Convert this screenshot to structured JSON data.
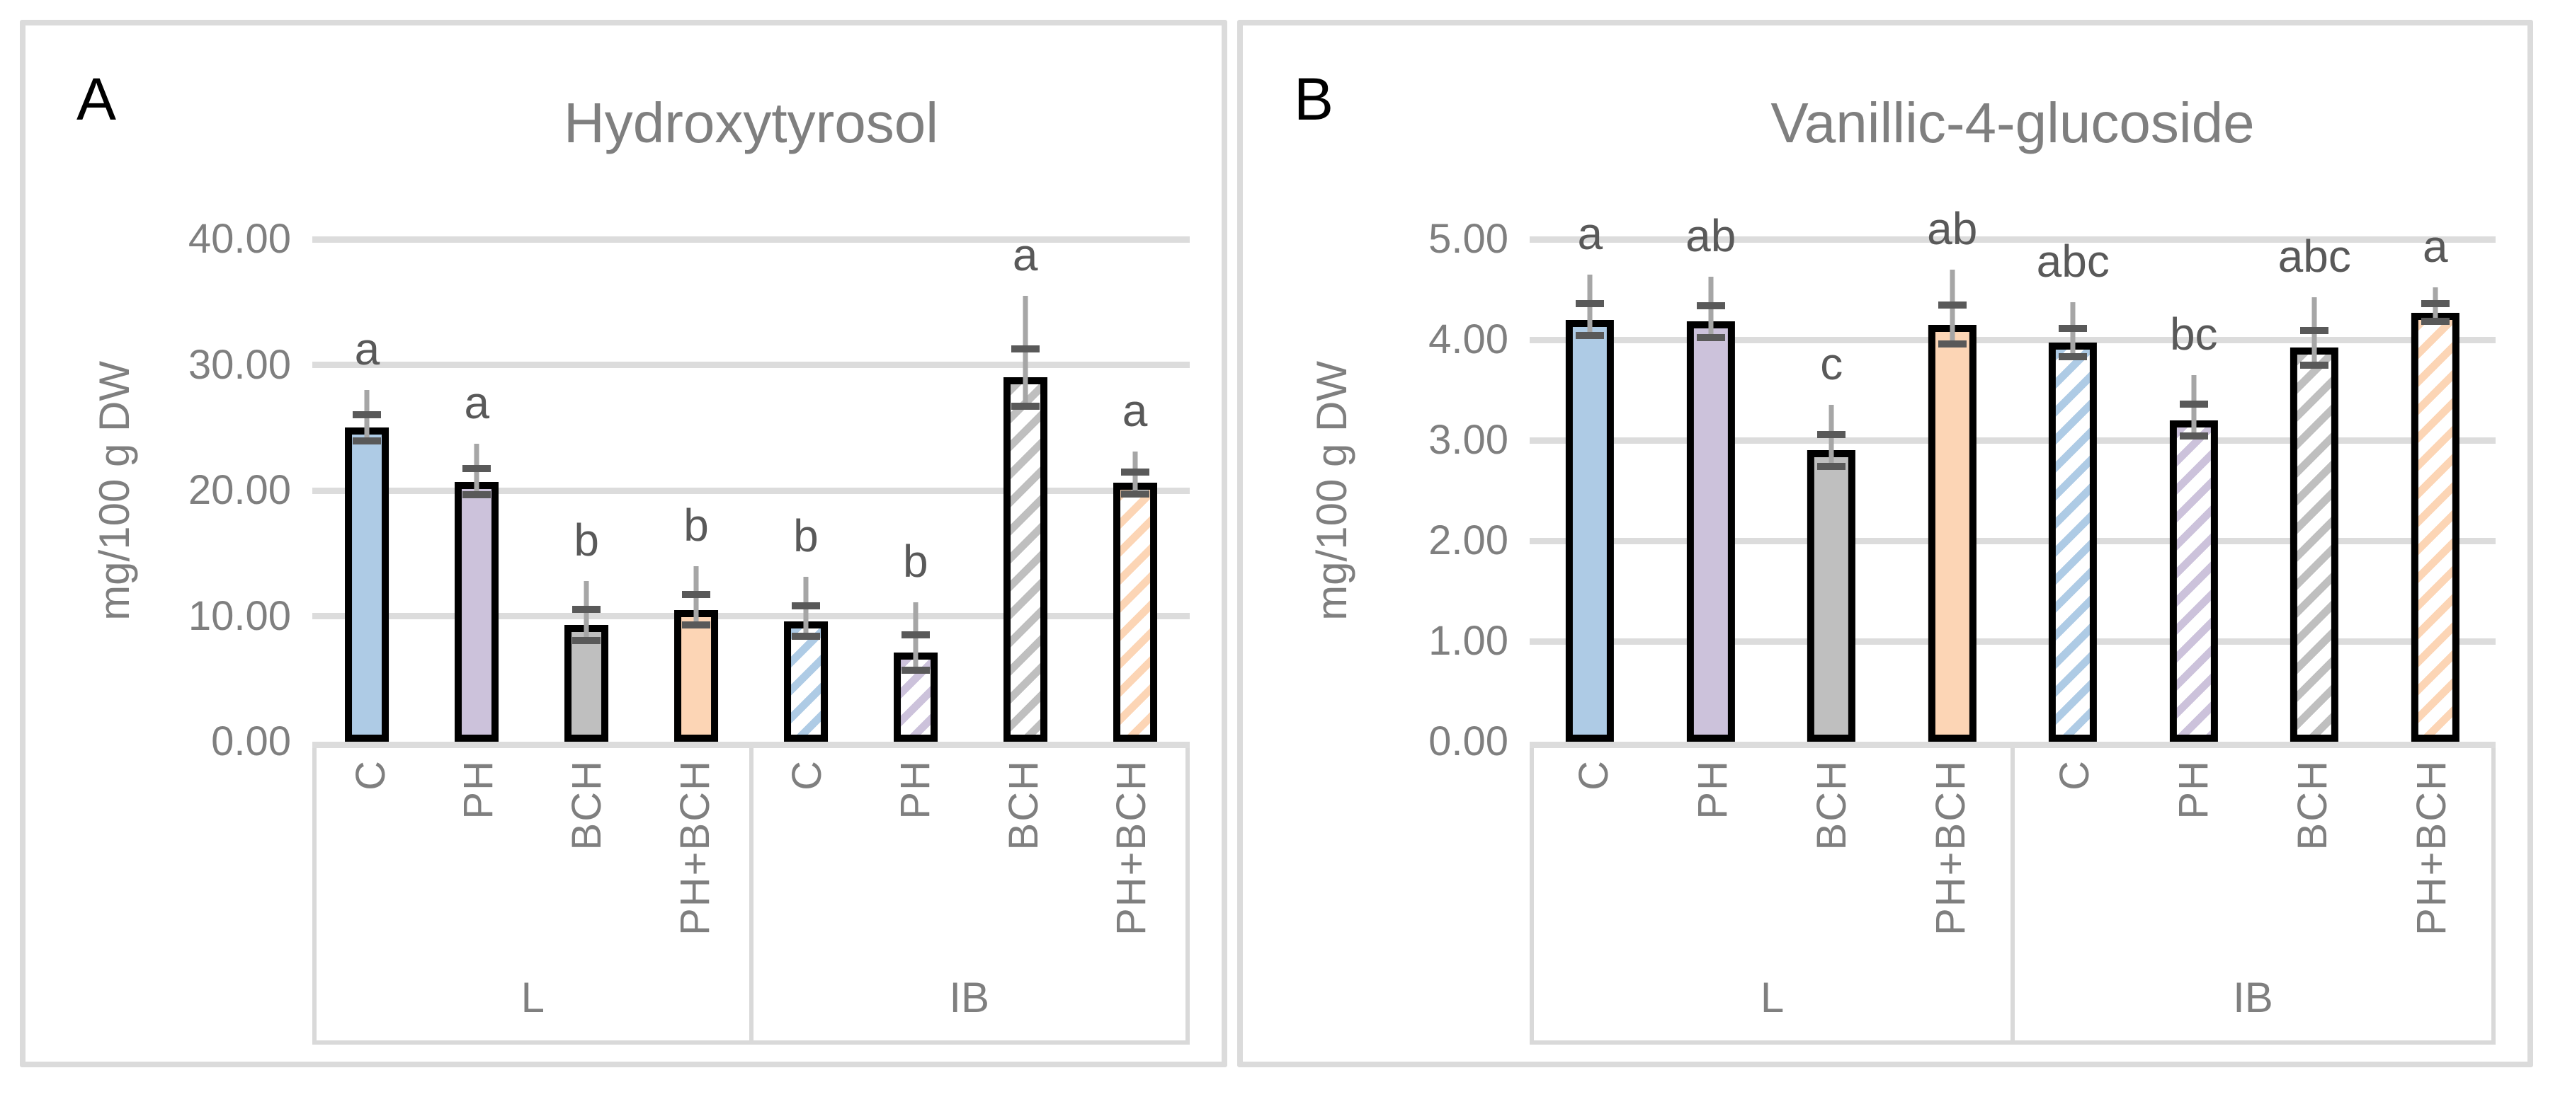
{
  "colors": {
    "panel_bg": "#FFFFFF",
    "panel_border": "#DBDBDB",
    "gridline": "#DCDCDC",
    "axis_box_line": "#D9D9D9",
    "bar_border": "#000000",
    "tick_text": "#7F7F7F",
    "title_text": "#7F7F7F",
    "letter_text": "#595959",
    "error_line": "#A6A6A6",
    "error_cap": "#595959"
  },
  "chart_data": [
    {
      "type": "bar",
      "panel_label": "A",
      "title": "Hydroxytyrosol",
      "xlabel": "",
      "ylabel": "mg/100 g DW",
      "ylim": [
        0,
        40
      ],
      "yticks": [
        "40.00",
        "30.00",
        "20.00",
        "10.00",
        "0.00"
      ],
      "grid": true,
      "legend": "none",
      "groups": [
        "L",
        "IB"
      ],
      "categories": [
        "C",
        "PH",
        "BCH",
        "PH+BCH",
        "C",
        "PH",
        "BCH",
        "PH+BCH"
      ],
      "values": [
        25.0,
        20.7,
        9.3,
        10.5,
        9.6,
        7.1,
        29.0,
        20.6
      ],
      "error_up": [
        3.0,
        3.0,
        3.5,
        3.5,
        3.5,
        4.0,
        6.5,
        2.5
      ],
      "sig_letters": [
        "a",
        "a",
        "b",
        "b",
        "b",
        "b",
        "a",
        "a"
      ],
      "bar_styles": [
        "solid",
        "solid",
        "solid",
        "solid",
        "hatch",
        "hatch",
        "hatch",
        "hatch"
      ],
      "bar_colors": [
        "#AECBE5",
        "#CCC2DB",
        "#BFBFBF",
        "#FCD5B5",
        "#AECBE5",
        "#CCC2DB",
        "#BFBFBF",
        "#FCD5B5"
      ]
    },
    {
      "type": "bar",
      "panel_label": "B",
      "title": "Vanillic-4-glucoside",
      "xlabel": "",
      "ylabel": "mg/100 g DW",
      "ylim": [
        0,
        5
      ],
      "yticks": [
        "5.00",
        "4.00",
        "3.00",
        "2.00",
        "1.00",
        "0.00"
      ],
      "grid": true,
      "legend": "none",
      "groups": [
        "L",
        "IB"
      ],
      "categories": [
        "C",
        "PH",
        "BCH",
        "PH+BCH",
        "C",
        "PH",
        "BCH",
        "PH+BCH"
      ],
      "values": [
        4.2,
        4.18,
        2.9,
        4.15,
        3.97,
        3.2,
        3.92,
        4.27
      ],
      "error_up": [
        0.45,
        0.45,
        0.45,
        0.55,
        0.4,
        0.45,
        0.5,
        0.25
      ],
      "sig_letters": [
        "a",
        "ab",
        "c",
        "ab",
        "abc",
        "bc",
        "abc",
        "a"
      ],
      "bar_styles": [
        "solid",
        "solid",
        "solid",
        "solid",
        "hatch",
        "hatch",
        "hatch",
        "hatch"
      ],
      "bar_colors": [
        "#AECBE5",
        "#CCC2DB",
        "#BFBFBF",
        "#FCD5B5",
        "#AECBE5",
        "#CCC2DB",
        "#BFBFBF",
        "#FCD5B5"
      ]
    }
  ]
}
